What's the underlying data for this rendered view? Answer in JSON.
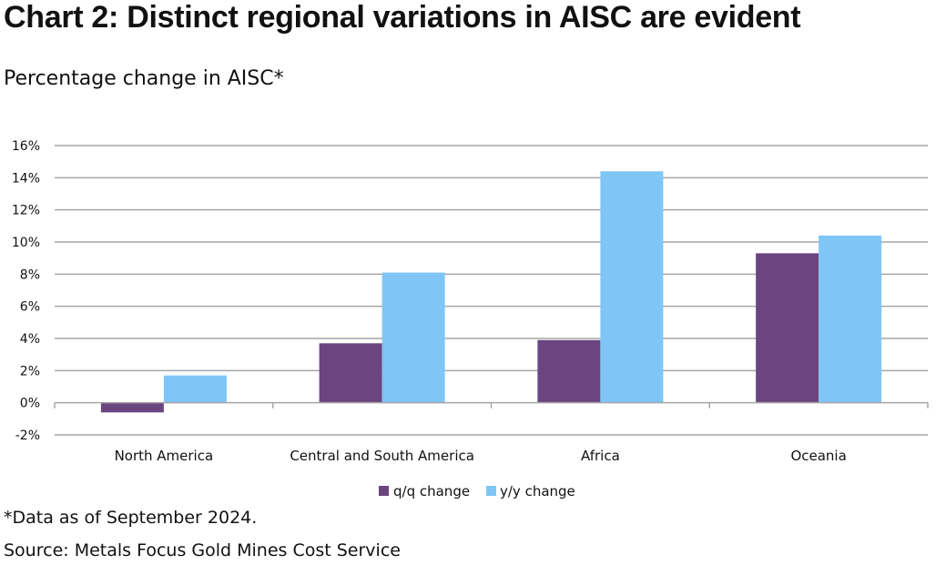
{
  "title": "Chart 2:  Distinct regional variations in AISC are evident",
  "subtitle": "Percentage change in AISC*",
  "footnote": "*Data as of September 2024.",
  "source": "Source: Metals Focus Gold Mines Cost Service",
  "colors": {
    "qq": "#6b4580",
    "yy": "#7fc6f7",
    "grid": "#a6a6a6",
    "axis": "#a6a6a6"
  },
  "chart_data": {
    "type": "bar",
    "title": "Percentage change in AISC*",
    "xlabel": "",
    "ylabel": "",
    "categories": [
      "North America",
      "Central and South America",
      "Africa",
      "Oceania"
    ],
    "series": [
      {
        "name": "q/q change",
        "values": [
          -0.6,
          3.7,
          3.9,
          9.3
        ]
      },
      {
        "name": "y/y change",
        "values": [
          1.7,
          8.1,
          14.4,
          10.4
        ]
      }
    ],
    "ylim": [
      -2,
      16
    ],
    "yticks": [
      -2,
      0,
      2,
      4,
      6,
      8,
      10,
      12,
      14,
      16
    ],
    "ytick_labels": [
      "-2%",
      "0%",
      "2%",
      "4%",
      "6%",
      "8%",
      "10%",
      "12%",
      "14%",
      "16%"
    ],
    "grid": true,
    "legend": {
      "position": "bottom-center",
      "entries": [
        "q/q change",
        "y/y change"
      ]
    }
  }
}
